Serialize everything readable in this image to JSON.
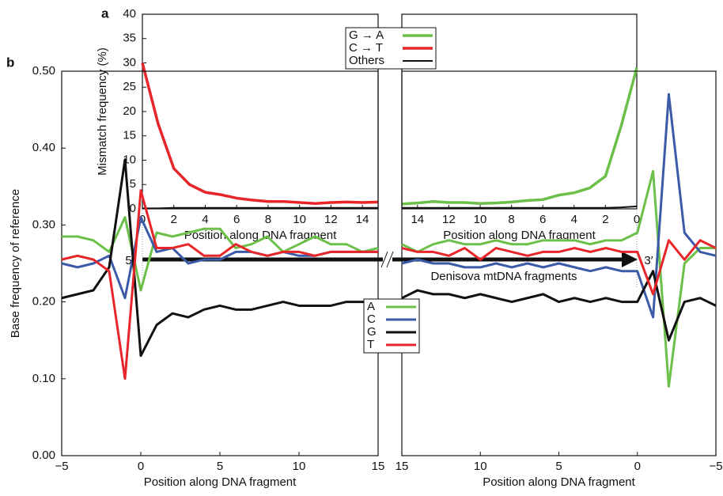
{
  "chart_data": [
    {
      "type": "line",
      "panel_label": "a",
      "ylabel": "Mismatch frequency (%)",
      "xlabel": "Position along DNA fragment",
      "x": [
        0,
        1,
        2,
        3,
        4,
        5,
        6,
        7,
        8,
        9,
        10,
        11,
        12,
        13,
        14,
        15
      ],
      "xlim": [
        0,
        15
      ],
      "xticks": [
        0,
        2,
        4,
        6,
        8,
        10,
        12,
        14
      ],
      "ylim": [
        0,
        40
      ],
      "yticks": [
        0,
        5,
        10,
        15,
        20,
        25,
        30,
        35,
        40
      ],
      "series": [
        {
          "name": "C → T",
          "color": "#e8262a",
          "linewidth": 3.5,
          "values": [
            30,
            17.5,
            8.3,
            5.0,
            3.4,
            2.9,
            2.2,
            1.8,
            1.5,
            1.5,
            1.3,
            1.1,
            1.3,
            1.4,
            1.3,
            1.4
          ]
        },
        {
          "name": "Others",
          "color": "#111111",
          "linewidth": 2,
          "values": [
            0.1,
            0.1,
            0.2,
            0.2,
            0.2,
            0.2,
            0.2,
            0.2,
            0.2,
            0.2,
            0.2,
            0.2,
            0.2,
            0.2,
            0.2,
            0.2
          ]
        }
      ]
    },
    {
      "type": "line",
      "xlabel": "Position along DNA fragment",
      "x": [
        15,
        14,
        13,
        12,
        11,
        10,
        9,
        8,
        7,
        6,
        5,
        4,
        3,
        2,
        1,
        0
      ],
      "xlim": [
        15,
        0
      ],
      "xticks": [
        14,
        12,
        10,
        8,
        6,
        4,
        2,
        0
      ],
      "ylim": [
        0,
        40
      ],
      "series": [
        {
          "name": "G → A",
          "color": "#6cc04a",
          "linewidth": 3.5,
          "values": [
            1.0,
            1.2,
            1.5,
            1.3,
            1.3,
            1.1,
            1.2,
            1.4,
            1.7,
            1.9,
            2.8,
            3.3,
            4.3,
            6.7,
            17,
            29
          ]
        },
        {
          "name": "Others",
          "color": "#111111",
          "linewidth": 2,
          "values": [
            0.2,
            0.2,
            0.2,
            0.2,
            0.2,
            0.2,
            0.2,
            0.2,
            0.2,
            0.2,
            0.2,
            0.2,
            0.2,
            0.2,
            0.3,
            0.5
          ]
        }
      ]
    },
    {
      "type": "line",
      "panel_label": "b",
      "ylabel": "Base frequency of reference",
      "xlabel": "Position along DNA fragment",
      "x": [
        -5,
        -4,
        -3,
        -2,
        -1,
        0,
        1,
        2,
        3,
        4,
        5,
        6,
        7,
        8,
        9,
        10,
        11,
        12,
        13,
        14,
        15
      ],
      "xlim": [
        -5,
        15
      ],
      "xticks": [
        {
          "value": -5,
          "label": "−5"
        },
        0,
        5,
        10,
        15
      ],
      "ylim": [
        0,
        0.5
      ],
      "yticks": [
        {
          "value": 0,
          "label": "0.00"
        },
        {
          "value": 0.1,
          "label": "0.10"
        },
        {
          "value": 0.2,
          "label": "0.20"
        },
        {
          "value": 0.3,
          "label": "0.30"
        },
        {
          "value": 0.4,
          "label": "0.40"
        },
        {
          "value": 0.5,
          "label": "0.50"
        }
      ],
      "series": [
        {
          "name": "A",
          "color": "#6cc04a",
          "linewidth": 3,
          "values": [
            0.285,
            0.285,
            0.28,
            0.265,
            0.31,
            0.215,
            0.29,
            0.285,
            0.29,
            0.295,
            0.295,
            0.27,
            0.275,
            0.285,
            0.265,
            0.275,
            0.285,
            0.275,
            0.275,
            0.265,
            0.27
          ]
        },
        {
          "name": "C",
          "color": "#3b5ba9",
          "linewidth": 3,
          "values": [
            0.25,
            0.245,
            0.25,
            0.26,
            0.205,
            0.31,
            0.265,
            0.27,
            0.25,
            0.255,
            0.255,
            0.265,
            0.265,
            0.26,
            0.265,
            0.26,
            0.26,
            0.265,
            0.265,
            0.265,
            0.265
          ]
        },
        {
          "name": "G",
          "color": "#111111",
          "linewidth": 3,
          "values": [
            0.205,
            0.21,
            0.215,
            0.245,
            0.385,
            0.13,
            0.17,
            0.185,
            0.18,
            0.19,
            0.195,
            0.19,
            0.19,
            0.195,
            0.2,
            0.195,
            0.195,
            0.195,
            0.2,
            0.2,
            0.2
          ]
        },
        {
          "name": "T",
          "color": "#e8262a",
          "linewidth": 3,
          "values": [
            0.255,
            0.26,
            0.255,
            0.24,
            0.1,
            0.345,
            0.27,
            0.27,
            0.275,
            0.26,
            0.26,
            0.275,
            0.265,
            0.26,
            0.265,
            0.265,
            0.26,
            0.265,
            0.265,
            0.265,
            0.265
          ]
        }
      ]
    },
    {
      "type": "line",
      "xlabel": "Position along DNA fragment",
      "x": [
        15,
        14,
        13,
        12,
        11,
        10,
        9,
        8,
        7,
        6,
        5,
        4,
        3,
        2,
        1,
        0,
        -1,
        -2,
        -3,
        -4,
        -5
      ],
      "xlim": [
        15,
        -5
      ],
      "xticks": [
        15,
        10,
        5,
        0,
        {
          "value": -5,
          "label": "−5"
        }
      ],
      "ylim": [
        0,
        0.5
      ],
      "series": [
        {
          "name": "A",
          "color": "#6cc04a",
          "linewidth": 3,
          "values": [
            0.275,
            0.265,
            0.275,
            0.28,
            0.275,
            0.275,
            0.28,
            0.275,
            0.275,
            0.28,
            0.28,
            0.28,
            0.275,
            0.28,
            0.28,
            0.29,
            0.37,
            0.09,
            0.25,
            0.27,
            0.27
          ]
        },
        {
          "name": "C",
          "color": "#3b5ba9",
          "linewidth": 3,
          "values": [
            0.25,
            0.255,
            0.25,
            0.25,
            0.245,
            0.245,
            0.25,
            0.245,
            0.25,
            0.245,
            0.25,
            0.245,
            0.24,
            0.245,
            0.24,
            0.24,
            0.18,
            0.47,
            0.29,
            0.265,
            0.26
          ]
        },
        {
          "name": "G",
          "color": "#111111",
          "linewidth": 3,
          "values": [
            0.205,
            0.215,
            0.21,
            0.21,
            0.205,
            0.21,
            0.205,
            0.2,
            0.205,
            0.21,
            0.2,
            0.205,
            0.2,
            0.205,
            0.2,
            0.2,
            0.24,
            0.15,
            0.2,
            0.205,
            0.195
          ]
        },
        {
          "name": "T",
          "color": "#e8262a",
          "linewidth": 3,
          "values": [
            0.27,
            0.265,
            0.265,
            0.26,
            0.27,
            0.255,
            0.27,
            0.265,
            0.26,
            0.265,
            0.265,
            0.27,
            0.265,
            0.27,
            0.265,
            0.265,
            0.21,
            0.28,
            0.255,
            0.28,
            0.27
          ]
        }
      ]
    }
  ],
  "arrow": {
    "start_label": "5′",
    "end_label": "3′",
    "caption": "Denisova mtDNA fragments"
  }
}
